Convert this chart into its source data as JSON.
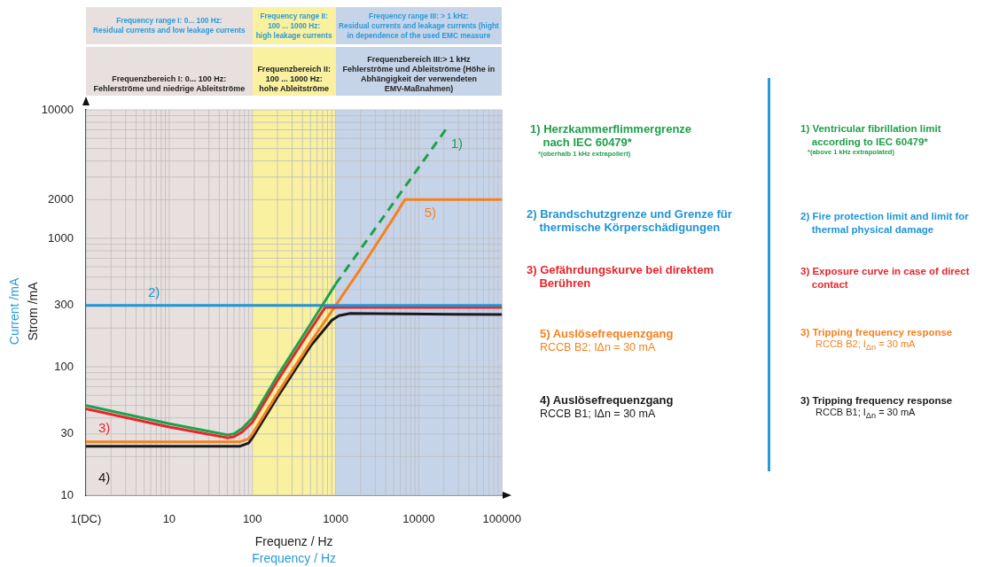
{
  "chart_data": {
    "type": "line",
    "xlabel": "Frequenz / Hz",
    "ylabel": "Strom /mA",
    "log": "xy",
    "grid": true,
    "marker": "none",
    "xlim": [
      1,
      100000
    ],
    "ylim": [
      10,
      10000
    ],
    "xticks": [
      {
        "value": 1,
        "label": "1(DC)"
      },
      10,
      100,
      1000,
      10000,
      100000
    ],
    "yticks": [
      10,
      30,
      100,
      300,
      1000,
      2000,
      10000
    ],
    "series": [
      {
        "color": "#1fa04a",
        "x": [
          1,
          10,
          50,
          60,
          75,
          100,
          200,
          500,
          1000
        ],
        "values": [
          50,
          36,
          29.5,
          30,
          33,
          40,
          85,
          215,
          440
        ]
      },
      {
        "name": "1)",
        "color": "#1fa04a",
        "line_style": "dashed",
        "x": [
          1000,
          21000
        ],
        "values": [
          440,
          7000
        ]
      },
      {
        "name": "2)",
        "color": "#1f95d6",
        "x": [
          1,
          100000
        ],
        "values": [
          300,
          300
        ]
      },
      {
        "name": "3)",
        "color": "#e8252b",
        "x": [
          1,
          10,
          50,
          60,
          75,
          100,
          200,
          500,
          750,
          100000
        ],
        "values": [
          47,
          34,
          28,
          28.5,
          31,
          37,
          78,
          195,
          290,
          290
        ]
      },
      {
        "name": "5)",
        "color": "#f5821f",
        "x": [
          1,
          70,
          90,
          100,
          200,
          500,
          1000,
          2000,
          5000,
          6800,
          100000
        ],
        "values": [
          26,
          26,
          27.5,
          30,
          62,
          155,
          300,
          580,
          1450,
          2000,
          2000
        ]
      },
      {
        "name": "4)",
        "color": "#1a1a1a",
        "x": [
          1,
          70,
          90,
          100,
          200,
          500,
          900,
          1100,
          1500,
          100000
        ],
        "values": [
          24,
          24,
          25.5,
          28,
          58,
          145,
          230,
          250,
          260,
          255
        ]
      }
    ],
    "bands": [
      {
        "axis": "x",
        "from": 1,
        "to": 100,
        "color": "#e8e0df",
        "label": "Frequenzbereich I: 0... 100 Hz:\nFehlerströme und niedrige Ableitströme"
      },
      {
        "axis": "x",
        "from": 100,
        "to": 1000,
        "color": "#f9f0a0",
        "label": "Frequenzbereich II:\n100 ... 1000 Hz:\nhohe  Ableitströme"
      },
      {
        "axis": "x",
        "from": 1000,
        "to": 100000,
        "color": "#c6d4ea",
        "label": "Frequenzbereich III:> 1 kHz\nFehlerströme und Ableitströme (Höhe in\nAbhängigkeit der verwendeten\nEMV-Maßnahmen)"
      }
    ],
    "annotations": [
      "Frequency range I: 0... 100 Hz:\nResidual currents and low leakage currents",
      "Frequency range II:\n100 ... 1000 Hz:\nhigh leakage currents",
      "Frequency range III: > 1 kHz:\nResidual currents and leakage currents (hight\nin dependence of the used EMC measure",
      "Current /mA",
      "Frequency / Hz",
      "1) Herzkammerflimmergrenze\n    nach IEC 60479*",
      "*(oberhalb 1 kHz extrapoliert)",
      "2) Brandschutzgrenze und Grenze für\n    thermische Körperschädigungen",
      "3) Gefährdungskurve bei direktem\n    Berühren",
      "5) Auslösefrequenzgang",
      "RCCB B2; IΔn = 30 mA",
      "4) Auslösefrequenzgang",
      "RCCB B1; IΔn = 30 mA",
      "1) Ventricular fibrillation limit\n    according to IEC 60479*",
      "*(above 1 kHz extrapolated)",
      "2) Fire protection limit and limit for\n    thermal physical damage",
      "3) Exposure curve in case of direct\n    contact",
      "3) Tripping frequency response",
      "RCCB B2; I$_{Δn}$ = 30 mA",
      "3) Tripping frequency response",
      "RCCB B1; I$_{Δn}$ = 30 mA"
    ]
  }
}
